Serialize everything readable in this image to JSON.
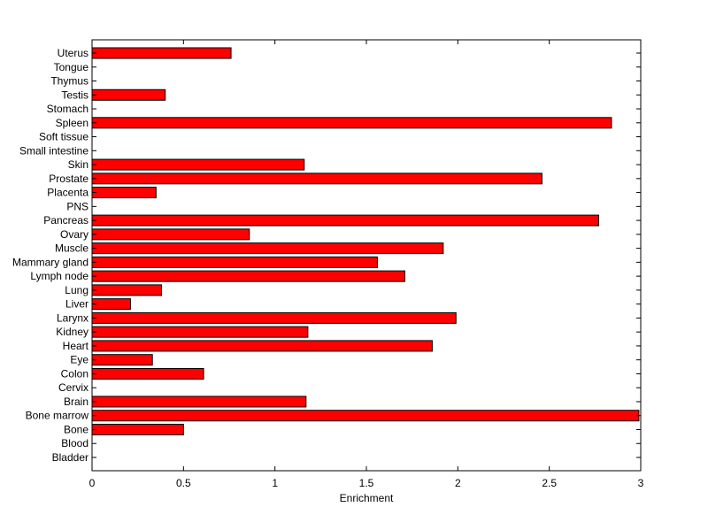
{
  "chart_data": {
    "type": "bar",
    "orientation": "horizontal",
    "categories": [
      "Bladder",
      "Blood",
      "Bone",
      "Bone marrow",
      "Brain",
      "Cervix",
      "Colon",
      "Eye",
      "Heart",
      "Kidney",
      "Larynx",
      "Liver",
      "Lung",
      "Lymph node",
      "Mammary gland",
      "Muscle",
      "Ovary",
      "Pancreas",
      "PNS",
      "Placenta",
      "Prostate",
      "Skin",
      "Small intestine",
      "Soft tissue",
      "Spleen",
      "Stomach",
      "Testis",
      "Thymus",
      "Tongue",
      "Uterus"
    ],
    "values": [
      0,
      0,
      0.5,
      2.99,
      1.17,
      0,
      0.61,
      0.33,
      1.86,
      1.18,
      1.99,
      0.21,
      0.38,
      1.71,
      1.56,
      1.92,
      0.86,
      2.77,
      0,
      0.35,
      2.46,
      1.16,
      0,
      0,
      2.84,
      0,
      0.4,
      0,
      0,
      0.76
    ],
    "xlabel": "Enrichment",
    "ylabel": "",
    "xlim": [
      0,
      3
    ],
    "xticks": [
      "0",
      "0.5",
      "1",
      "1.5",
      "2",
      "2.5",
      "3"
    ],
    "bar_color": "#ff0000",
    "grid": false
  }
}
